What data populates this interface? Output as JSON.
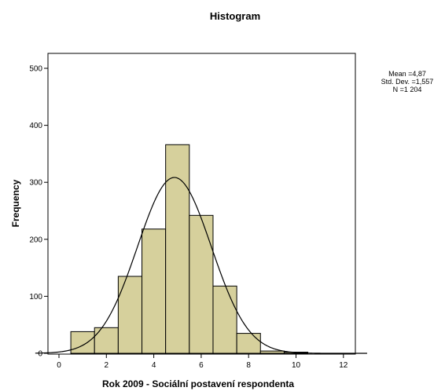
{
  "chart_data": {
    "type": "bar",
    "title": "Histogram",
    "xlabel": "Rok 2009 - Sociální postavení respondenta",
    "ylabel": "Frequency",
    "xlim": [
      -1,
      13
    ],
    "ylim": [
      0,
      520
    ],
    "xticks": [
      0,
      2,
      4,
      6,
      8,
      10,
      12
    ],
    "yticks": [
      0,
      100,
      200,
      300,
      400,
      500
    ],
    "bins": [
      {
        "x": 1,
        "count": 38
      },
      {
        "x": 2,
        "count": 45
      },
      {
        "x": 3,
        "count": 135
      },
      {
        "x": 4,
        "count": 218
      },
      {
        "x": 5,
        "count": 366
      },
      {
        "x": 6,
        "count": 242
      },
      {
        "x": 7,
        "count": 118
      },
      {
        "x": 8,
        "count": 35
      },
      {
        "x": 9,
        "count": 4
      },
      {
        "x": 10,
        "count": 2
      }
    ],
    "normal_curve": {
      "mean": 4.87,
      "std_dev": 1.557,
      "n": 1204,
      "bin_width": 1
    },
    "stats_text": [
      "Mean =4,87",
      "Std. Dev. =1,557",
      "N =1 204"
    ],
    "colors": {
      "bar_fill": "#d6d09c",
      "bar_stroke": "#000000",
      "plot_bg": "#ffffff",
      "curve": "#000000"
    },
    "grid": false
  }
}
